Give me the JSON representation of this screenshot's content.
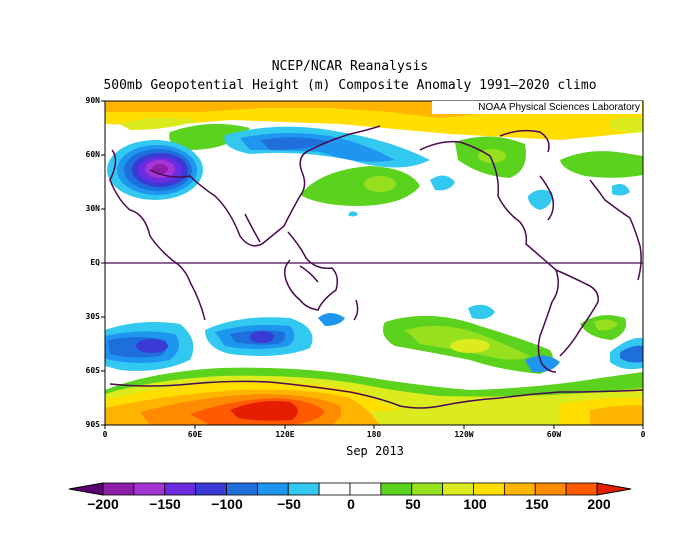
{
  "title": "NCEP/NCAR Reanalysis",
  "subtitle": "500mb Geopotential Height (m) Composite Anomaly 1991–2020 climo",
  "credit": "NOAA Physical Sciences Laboratory",
  "period": "Sep 2013",
  "lat_labels": [
    "90N",
    "60N",
    "30N",
    "EQ",
    "30S",
    "60S",
    "90S"
  ],
  "lon_labels": [
    "0",
    "60E",
    "120E",
    "180",
    "120W",
    "60W",
    "0"
  ],
  "colorbar": {
    "tick_labels": [
      "−200",
      "−150",
      "−100",
      "−50",
      "0",
      "50",
      "100",
      "150",
      "200"
    ],
    "colors": [
      "#5a0070",
      "#8c1ea8",
      "#a534d6",
      "#6b2be0",
      "#3a3ad6",
      "#1e6edc",
      "#1e96f0",
      "#32c8f0",
      "#ffffff",
      "#ffffff",
      "#5ad21e",
      "#96e01e",
      "#dceb1e",
      "#ffde00",
      "#ffb400",
      "#ff8c00",
      "#ff5a00",
      "#e61e00"
    ]
  }
}
